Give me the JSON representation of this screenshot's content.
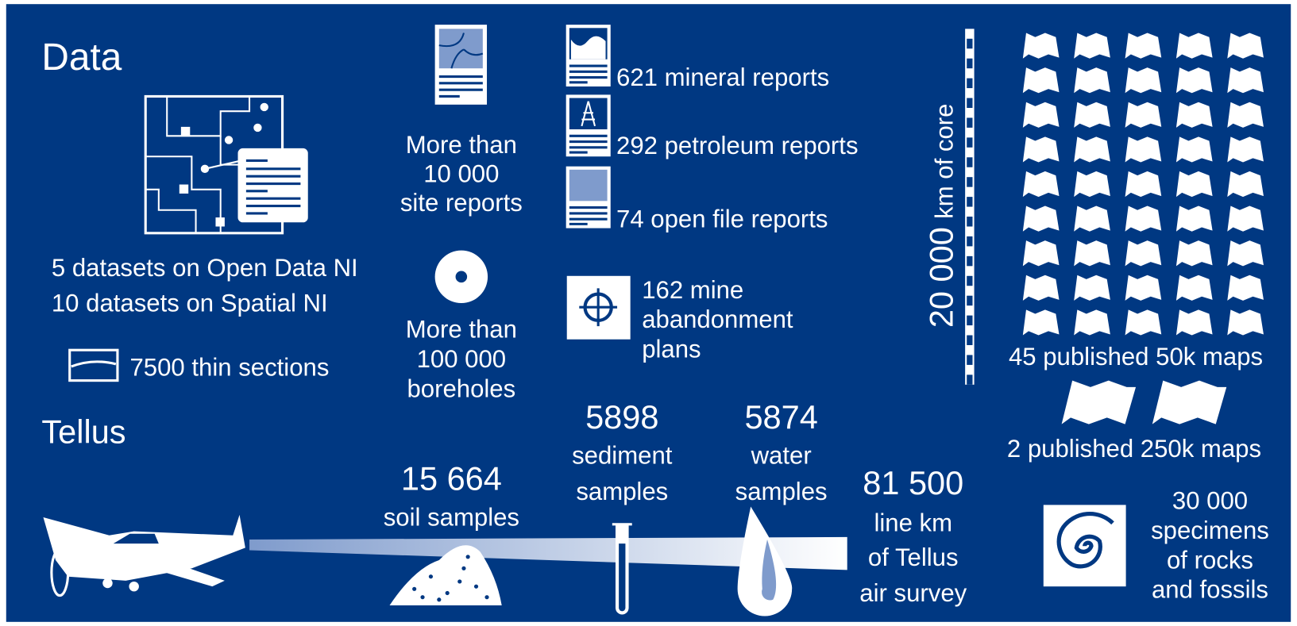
{
  "data_section": {
    "title": "Data",
    "open_data": [
      "5 datasets on Open Data NI",
      "10 datasets on Spatial NI"
    ],
    "thin_sections": "7500 thin sections",
    "site_reports": [
      "More than",
      "10 000",
      "site reports"
    ],
    "boreholes": [
      "More than",
      "100 000",
      "boreholes"
    ],
    "reports": [
      "621 mineral reports",
      "292 petroleum reports",
      "74 open file reports"
    ],
    "mine_plans": [
      "162 mine",
      "abandonment",
      "plans"
    ],
    "core": {
      "number": "20 000",
      "label": "km of core"
    },
    "maps_50k": "45 published 50k maps",
    "maps_250k": "2 published 250k maps",
    "specimens": [
      "30 000",
      "specimens",
      "of rocks",
      "and fossils"
    ]
  },
  "tellus": {
    "title": "Tellus",
    "soil": {
      "number": "15 664",
      "label": "soil samples"
    },
    "sediment": {
      "number": "5898",
      "label": [
        "sediment",
        "samples"
      ]
    },
    "water": {
      "number": "5874",
      "label": [
        "water",
        "samples"
      ]
    },
    "air": {
      "number": "81 500",
      "label": [
        "line km",
        "of Tellus",
        "air survey"
      ]
    }
  }
}
